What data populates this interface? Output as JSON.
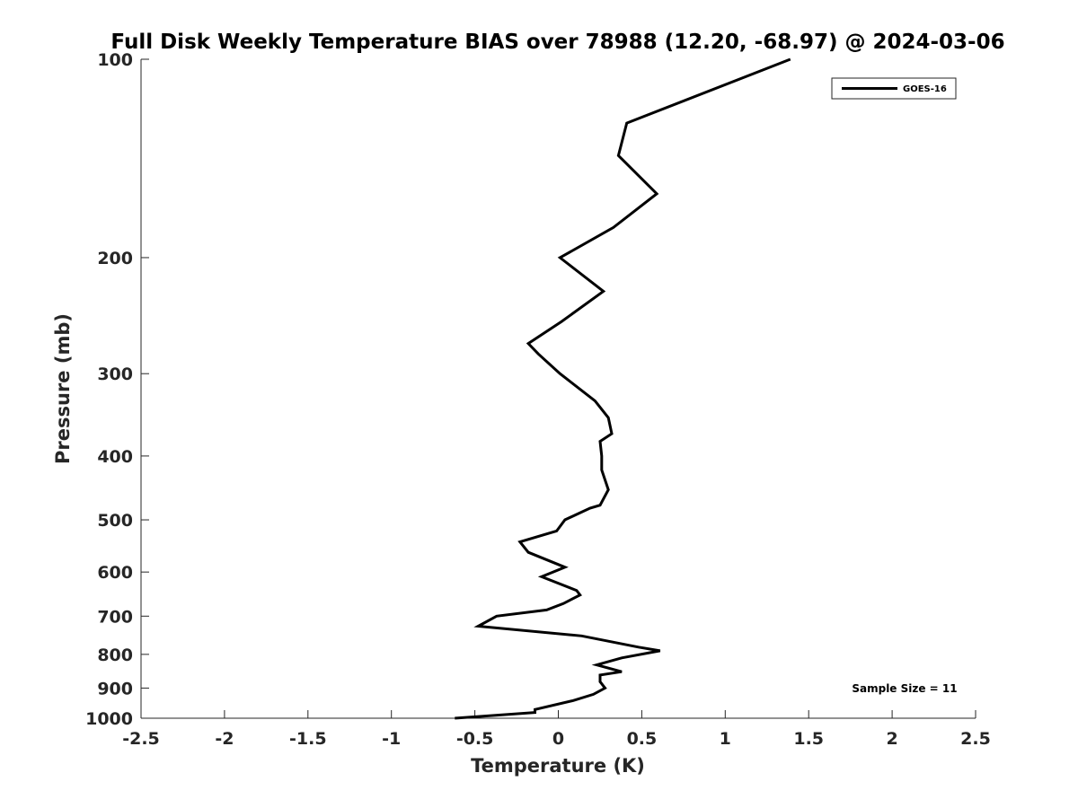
{
  "chart_data": {
    "type": "line",
    "title": "Full Disk Weekly Temperature BIAS over 78988 (12.20, -68.97) @ 2024-03-06",
    "xlabel": "Temperature (K)",
    "ylabel": "Pressure (mb)",
    "xlim": [
      -2.5,
      2.5
    ],
    "ylim": [
      1000,
      100
    ],
    "y_scale": "log",
    "y_reversed": true,
    "x_ticks": [
      "-2.5",
      "-2",
      "-1.5",
      "-1",
      "-0.5",
      "0",
      "0.5",
      "1",
      "1.5",
      "2",
      "2.5"
    ],
    "x_tick_values": [
      -2.5,
      -2,
      -1.5,
      -1,
      -0.5,
      0,
      0.5,
      1,
      1.5,
      2,
      2.5
    ],
    "y_ticks": [
      "100",
      "200",
      "300",
      "400",
      "500",
      "600",
      "700",
      "800",
      "900",
      "1000"
    ],
    "y_tick_values": [
      100,
      200,
      300,
      400,
      500,
      600,
      700,
      800,
      900,
      1000
    ],
    "grid": false,
    "legend_position": "top-right",
    "series": [
      {
        "name": "GOES-16",
        "color": "#000000",
        "x": [
          1.39,
          0.41,
          0.36,
          0.59,
          0.33,
          0.01,
          0.27,
          0.02,
          -0.18,
          -0.12,
          0.01,
          0.22,
          0.3,
          0.32,
          0.25,
          0.26,
          0.26,
          0.3,
          0.25,
          0.19,
          0.04,
          -0.01,
          -0.23,
          -0.18,
          0.04,
          -0.1,
          0.11,
          0.13,
          0.03,
          -0.07,
          -0.37,
          -0.48,
          0.14,
          0.48,
          0.61,
          0.38,
          0.23,
          0.38,
          0.25,
          0.25,
          0.28,
          0.21,
          0.09,
          -0.14,
          -0.14,
          -0.62
        ],
        "y": [
          100,
          125,
          140,
          160,
          180,
          200,
          225,
          250,
          270,
          280,
          300,
          330,
          350,
          370,
          380,
          400,
          420,
          450,
          475,
          480,
          500,
          520,
          540,
          560,
          590,
          610,
          640,
          650,
          670,
          685,
          700,
          725,
          750,
          780,
          790,
          810,
          830,
          850,
          860,
          880,
          900,
          920,
          940,
          970,
          980,
          1000
        ]
      }
    ],
    "annotations": [
      "Sample Size = 11"
    ]
  },
  "legend": {
    "label": "GOES-16"
  },
  "annotation": {
    "sample_size": "Sample Size = 11"
  }
}
